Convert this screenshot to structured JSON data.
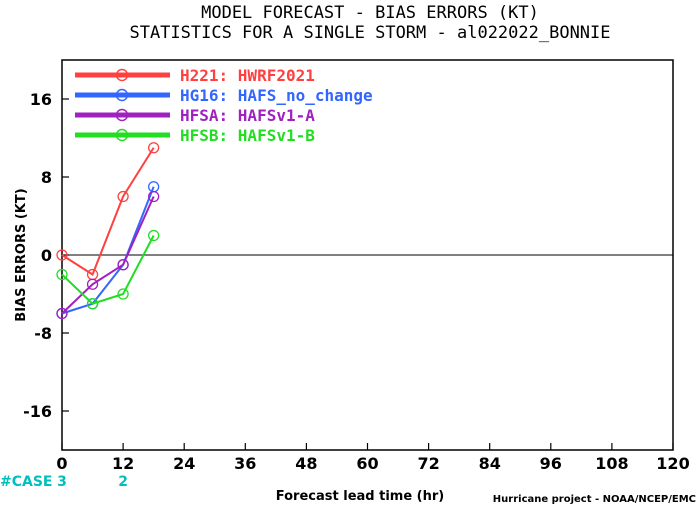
{
  "chart_data": {
    "type": "line",
    "title": "MODEL FORECAST - BIAS ERRORS (KT)",
    "subtitle": "STATISTICS FOR A SINGLE STORM - al022022_BONNIE",
    "xlabel": "Forecast lead time (hr)",
    "ylabel": "BIAS ERRORS (KT)",
    "xlim": [
      0,
      120
    ],
    "ylim": [
      -20,
      20
    ],
    "x_ticks": [
      0,
      12,
      24,
      36,
      48,
      60,
      72,
      84,
      96,
      108,
      120
    ],
    "y_ticks": [
      -16,
      -8,
      0,
      8,
      16
    ],
    "zero_line": true,
    "legend_position": "top-left",
    "series": [
      {
        "name": "H221: HWRF2021",
        "color": "#ff4040",
        "x": [
          0,
          6,
          12,
          18
        ],
        "values": [
          0,
          -2,
          6,
          11
        ]
      },
      {
        "name": "HG16: HAFS_no_change",
        "color": "#3366ff",
        "x": [
          0,
          6,
          12,
          18
        ],
        "values": [
          -6,
          -5,
          -1,
          7
        ]
      },
      {
        "name": "HFSA: HAFSv1-A",
        "color": "#a020c0",
        "x": [
          0,
          6,
          12,
          18
        ],
        "values": [
          -6,
          -3,
          -1,
          6
        ]
      },
      {
        "name": "HFSB: HAFSv1-B",
        "color": "#22dd22",
        "x": [
          0,
          6,
          12,
          18
        ],
        "values": [
          -2,
          -5,
          -4,
          2
        ]
      }
    ],
    "case_counts": {
      "label": "#CASE",
      "color": "#00bfbf",
      "entries": [
        {
          "x": 0,
          "value": "3"
        },
        {
          "x": 12,
          "value": "2"
        }
      ]
    }
  },
  "credit": "Hurricane project - NOAA/NCEP/EMC"
}
